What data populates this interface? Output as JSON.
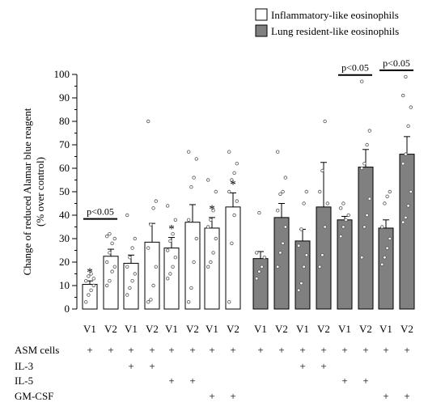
{
  "chart_data": {
    "type": "bar",
    "ylabel": "Change of reduced Alamar blue reagent",
    "ylabel2": "(% over control)",
    "ylim": [
      0,
      100
    ],
    "yticks": [
      0,
      10,
      20,
      30,
      40,
      50,
      60,
      70,
      80,
      90,
      100
    ],
    "legend": {
      "placement": "top-right",
      "entries": [
        {
          "label": "Inflammatory-like eosinophils",
          "color": "#ffffff"
        },
        {
          "label": "Lung resident-like eosinophils",
          "color": "#808080"
        }
      ]
    },
    "colors": {
      "inflammatory": "#ffffff",
      "resident": "#808080",
      "stroke": "#000000"
    },
    "series": [
      {
        "name": "Inflammatory-like eosinophils",
        "groups": [
          {
            "v1": {
              "mean": 10.5,
              "err": 1.5,
              "points": [
                3,
                6,
                8,
                10,
                12,
                14,
                15,
                13
              ]
            },
            "v2": {
              "mean": 22.5,
              "err": 3,
              "points": [
                10,
                12,
                16,
                18,
                20,
                24,
                28,
                30,
                31,
                32
              ]
            },
            "star": "v1",
            "pval": "p<0.05"
          },
          {
            "v1": {
              "mean": 19.5,
              "err": 3.5,
              "points": [
                6,
                9,
                12,
                15,
                18,
                22,
                26,
                30,
                40
              ]
            },
            "v2": {
              "mean": 28.5,
              "err": 8,
              "points": [
                3,
                4,
                10,
                18,
                26,
                36,
                43,
                46,
                80
              ]
            }
          },
          {
            "v1": {
              "mean": 26,
              "err": 4.5,
              "points": [
                13,
                15,
                18,
                22,
                25,
                29,
                32,
                38,
                44
              ]
            },
            "v2": {
              "mean": 37,
              "err": 7.5,
              "points": [
                3,
                9,
                20,
                30,
                38,
                52,
                56,
                64,
                67
              ]
            },
            "star": "v1"
          },
          {
            "v1": {
              "mean": 34.5,
              "err": 4.5,
              "points": [
                18,
                20,
                24,
                30,
                35,
                38,
                42,
                50,
                55
              ]
            },
            "v2": {
              "mean": 43.5,
              "err": 6,
              "points": [
                3,
                28,
                40,
                46,
                50,
                55,
                58,
                62,
                67
              ]
            },
            "star": "both"
          }
        ]
      },
      {
        "name": "Lung resident-like eosinophils",
        "groups": [
          {
            "v1": {
              "mean": 21.5,
              "err": 3,
              "points": [
                13,
                16,
                18,
                22,
                24,
                41
              ]
            },
            "v2": {
              "mean": 39,
              "err": 6,
              "points": [
                18,
                24,
                28,
                35,
                42,
                49,
                50,
                56,
                67
              ]
            }
          },
          {
            "v1": {
              "mean": 29,
              "err": 5,
              "points": [
                8,
                11,
                18,
                23,
                27,
                34,
                45,
                50
              ]
            },
            "v2": {
              "mean": 43.5,
              "err": 19,
              "points": [
                18,
                23,
                35,
                45,
                50,
                59,
                80
              ]
            }
          },
          {
            "v1": {
              "mean": 38,
              "err": 1.5,
              "points": [
                31,
                35,
                38,
                40,
                43,
                45
              ]
            },
            "v2": {
              "mean": 60.5,
              "err": 7.5,
              "points": [
                22,
                35,
                40,
                47,
                60,
                62,
                70,
                76,
                97
              ]
            },
            "pval": "p<0.05"
          },
          {
            "v1": {
              "mean": 34.5,
              "err": 3.5,
              "points": [
                19,
                22,
                26,
                30,
                35,
                45,
                48,
                50
              ]
            },
            "v2": {
              "mean": 66,
              "err": 7.5,
              "points": [
                37,
                39,
                44,
                50,
                62,
                66,
                78,
                86,
                91,
                99
              ]
            },
            "pval": "p<0.05"
          }
        ]
      }
    ],
    "visit_labels": [
      "V1",
      "V2"
    ],
    "conditions": {
      "rows": [
        "ASM cells",
        "IL-3",
        "IL-5",
        "GM-CSF"
      ],
      "marker": "+",
      "per_group": [
        [
          true,
          false,
          false,
          false
        ],
        [
          true,
          true,
          false,
          false
        ],
        [
          true,
          false,
          true,
          false
        ],
        [
          true,
          false,
          false,
          true
        ],
        [
          true,
          false,
          false,
          false
        ],
        [
          true,
          true,
          false,
          false
        ],
        [
          true,
          false,
          true,
          false
        ],
        [
          true,
          false,
          false,
          true
        ]
      ]
    },
    "star_symbol": "*"
  }
}
